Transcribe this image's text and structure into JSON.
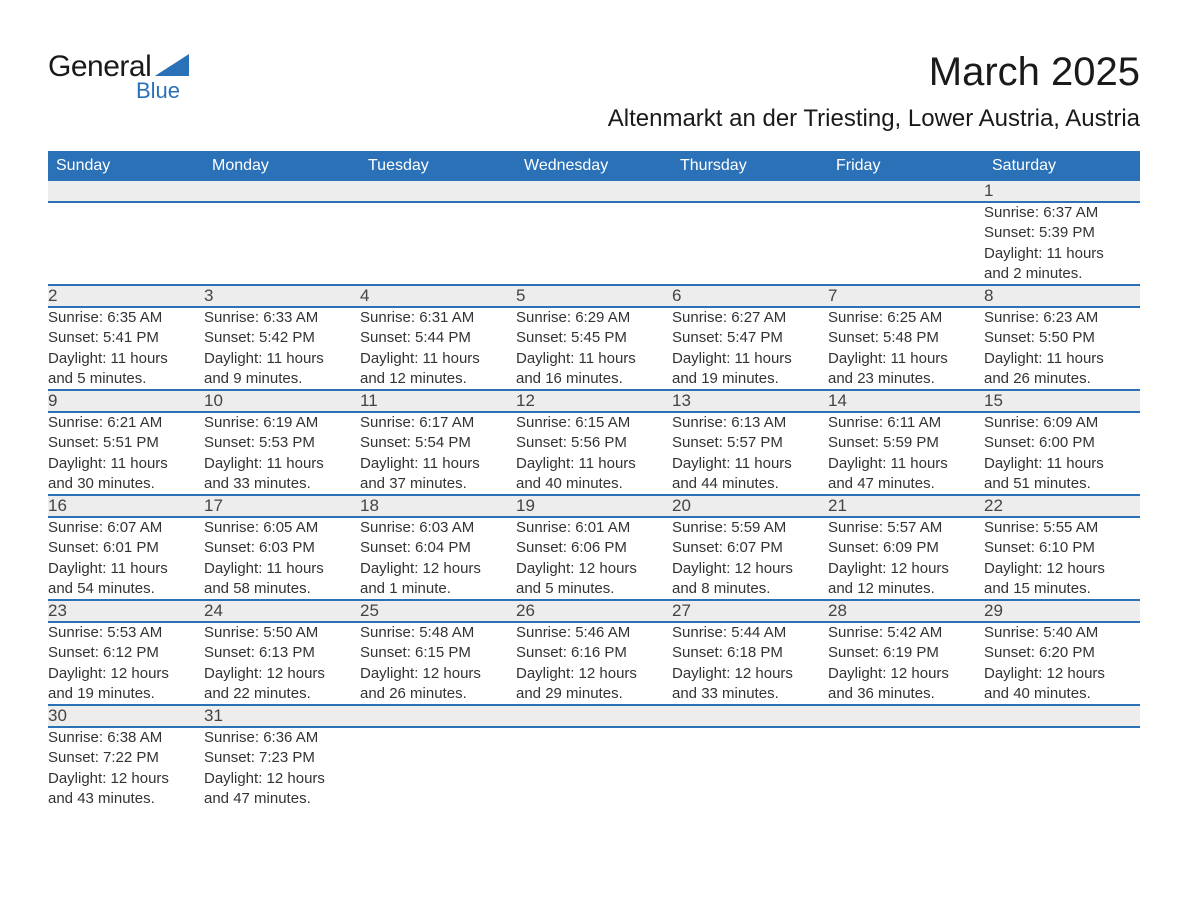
{
  "brand": {
    "name_a": "General",
    "name_b": "Blue",
    "shape_color": "#2a71b8"
  },
  "title": "March 2025",
  "location": "Altenmarkt an der Triesting, Lower Austria, Austria",
  "colors": {
    "header_bg": "#2a71b8",
    "header_text": "#ffffff",
    "daynum_bg": "#ededed",
    "border": "#2a71b8",
    "text": "#333333",
    "page_bg": "#ffffff"
  },
  "typography": {
    "title_fontsize": 40,
    "location_fontsize": 24,
    "header_fontsize": 16,
    "cell_fontsize": 15
  },
  "weekdays": [
    "Sunday",
    "Monday",
    "Tuesday",
    "Wednesday",
    "Thursday",
    "Friday",
    "Saturday"
  ],
  "weeks": [
    [
      null,
      null,
      null,
      null,
      null,
      null,
      {
        "n": "1",
        "sr": "Sunrise: 6:37 AM",
        "ss": "Sunset: 5:39 PM",
        "d1": "Daylight: 11 hours",
        "d2": "and 2 minutes."
      }
    ],
    [
      {
        "n": "2",
        "sr": "Sunrise: 6:35 AM",
        "ss": "Sunset: 5:41 PM",
        "d1": "Daylight: 11 hours",
        "d2": "and 5 minutes."
      },
      {
        "n": "3",
        "sr": "Sunrise: 6:33 AM",
        "ss": "Sunset: 5:42 PM",
        "d1": "Daylight: 11 hours",
        "d2": "and 9 minutes."
      },
      {
        "n": "4",
        "sr": "Sunrise: 6:31 AM",
        "ss": "Sunset: 5:44 PM",
        "d1": "Daylight: 11 hours",
        "d2": "and 12 minutes."
      },
      {
        "n": "5",
        "sr": "Sunrise: 6:29 AM",
        "ss": "Sunset: 5:45 PM",
        "d1": "Daylight: 11 hours",
        "d2": "and 16 minutes."
      },
      {
        "n": "6",
        "sr": "Sunrise: 6:27 AM",
        "ss": "Sunset: 5:47 PM",
        "d1": "Daylight: 11 hours",
        "d2": "and 19 minutes."
      },
      {
        "n": "7",
        "sr": "Sunrise: 6:25 AM",
        "ss": "Sunset: 5:48 PM",
        "d1": "Daylight: 11 hours",
        "d2": "and 23 minutes."
      },
      {
        "n": "8",
        "sr": "Sunrise: 6:23 AM",
        "ss": "Sunset: 5:50 PM",
        "d1": "Daylight: 11 hours",
        "d2": "and 26 minutes."
      }
    ],
    [
      {
        "n": "9",
        "sr": "Sunrise: 6:21 AM",
        "ss": "Sunset: 5:51 PM",
        "d1": "Daylight: 11 hours",
        "d2": "and 30 minutes."
      },
      {
        "n": "10",
        "sr": "Sunrise: 6:19 AM",
        "ss": "Sunset: 5:53 PM",
        "d1": "Daylight: 11 hours",
        "d2": "and 33 minutes."
      },
      {
        "n": "11",
        "sr": "Sunrise: 6:17 AM",
        "ss": "Sunset: 5:54 PM",
        "d1": "Daylight: 11 hours",
        "d2": "and 37 minutes."
      },
      {
        "n": "12",
        "sr": "Sunrise: 6:15 AM",
        "ss": "Sunset: 5:56 PM",
        "d1": "Daylight: 11 hours",
        "d2": "and 40 minutes."
      },
      {
        "n": "13",
        "sr": "Sunrise: 6:13 AM",
        "ss": "Sunset: 5:57 PM",
        "d1": "Daylight: 11 hours",
        "d2": "and 44 minutes."
      },
      {
        "n": "14",
        "sr": "Sunrise: 6:11 AM",
        "ss": "Sunset: 5:59 PM",
        "d1": "Daylight: 11 hours",
        "d2": "and 47 minutes."
      },
      {
        "n": "15",
        "sr": "Sunrise: 6:09 AM",
        "ss": "Sunset: 6:00 PM",
        "d1": "Daylight: 11 hours",
        "d2": "and 51 minutes."
      }
    ],
    [
      {
        "n": "16",
        "sr": "Sunrise: 6:07 AM",
        "ss": "Sunset: 6:01 PM",
        "d1": "Daylight: 11 hours",
        "d2": "and 54 minutes."
      },
      {
        "n": "17",
        "sr": "Sunrise: 6:05 AM",
        "ss": "Sunset: 6:03 PM",
        "d1": "Daylight: 11 hours",
        "d2": "and 58 minutes."
      },
      {
        "n": "18",
        "sr": "Sunrise: 6:03 AM",
        "ss": "Sunset: 6:04 PM",
        "d1": "Daylight: 12 hours",
        "d2": "and 1 minute."
      },
      {
        "n": "19",
        "sr": "Sunrise: 6:01 AM",
        "ss": "Sunset: 6:06 PM",
        "d1": "Daylight: 12 hours",
        "d2": "and 5 minutes."
      },
      {
        "n": "20",
        "sr": "Sunrise: 5:59 AM",
        "ss": "Sunset: 6:07 PM",
        "d1": "Daylight: 12 hours",
        "d2": "and 8 minutes."
      },
      {
        "n": "21",
        "sr": "Sunrise: 5:57 AM",
        "ss": "Sunset: 6:09 PM",
        "d1": "Daylight: 12 hours",
        "d2": "and 12 minutes."
      },
      {
        "n": "22",
        "sr": "Sunrise: 5:55 AM",
        "ss": "Sunset: 6:10 PM",
        "d1": "Daylight: 12 hours",
        "d2": "and 15 minutes."
      }
    ],
    [
      {
        "n": "23",
        "sr": "Sunrise: 5:53 AM",
        "ss": "Sunset: 6:12 PM",
        "d1": "Daylight: 12 hours",
        "d2": "and 19 minutes."
      },
      {
        "n": "24",
        "sr": "Sunrise: 5:50 AM",
        "ss": "Sunset: 6:13 PM",
        "d1": "Daylight: 12 hours",
        "d2": "and 22 minutes."
      },
      {
        "n": "25",
        "sr": "Sunrise: 5:48 AM",
        "ss": "Sunset: 6:15 PM",
        "d1": "Daylight: 12 hours",
        "d2": "and 26 minutes."
      },
      {
        "n": "26",
        "sr": "Sunrise: 5:46 AM",
        "ss": "Sunset: 6:16 PM",
        "d1": "Daylight: 12 hours",
        "d2": "and 29 minutes."
      },
      {
        "n": "27",
        "sr": "Sunrise: 5:44 AM",
        "ss": "Sunset: 6:18 PM",
        "d1": "Daylight: 12 hours",
        "d2": "and 33 minutes."
      },
      {
        "n": "28",
        "sr": "Sunrise: 5:42 AM",
        "ss": "Sunset: 6:19 PM",
        "d1": "Daylight: 12 hours",
        "d2": "and 36 minutes."
      },
      {
        "n": "29",
        "sr": "Sunrise: 5:40 AM",
        "ss": "Sunset: 6:20 PM",
        "d1": "Daylight: 12 hours",
        "d2": "and 40 minutes."
      }
    ],
    [
      {
        "n": "30",
        "sr": "Sunrise: 6:38 AM",
        "ss": "Sunset: 7:22 PM",
        "d1": "Daylight: 12 hours",
        "d2": "and 43 minutes."
      },
      {
        "n": "31",
        "sr": "Sunrise: 6:36 AM",
        "ss": "Sunset: 7:23 PM",
        "d1": "Daylight: 12 hours",
        "d2": "and 47 minutes."
      },
      null,
      null,
      null,
      null,
      null
    ]
  ]
}
